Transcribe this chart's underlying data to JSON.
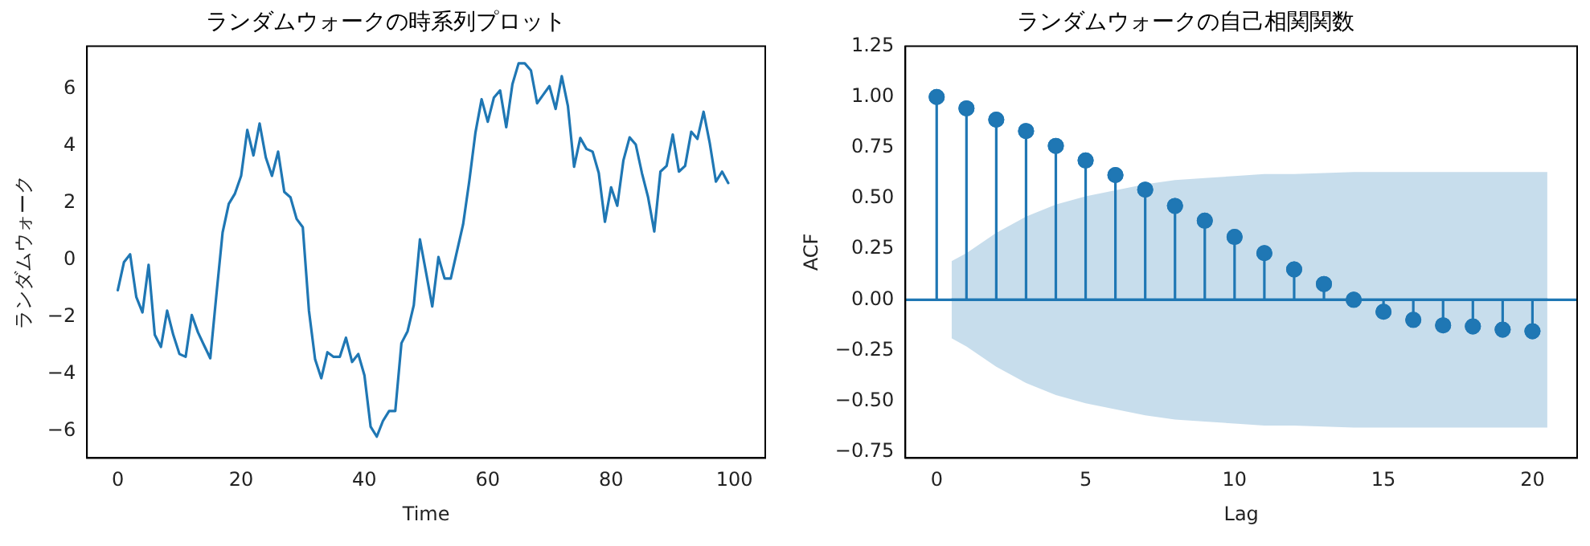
{
  "chart_data": [
    {
      "type": "line",
      "title": "ランダムウォークの時系列プロット",
      "xlabel": "Time",
      "ylabel": "ランダムウォーク",
      "x": [
        0,
        1,
        2,
        3,
        4,
        5,
        6,
        7,
        8,
        9,
        10,
        11,
        12,
        13,
        14,
        15,
        16,
        17,
        18,
        19,
        20,
        21,
        22,
        23,
        24,
        25,
        26,
        27,
        28,
        29,
        30,
        31,
        32,
        33,
        34,
        35,
        36,
        37,
        38,
        39,
        40,
        41,
        42,
        43,
        44,
        45,
        46,
        47,
        48,
        49,
        50,
        51,
        52,
        53,
        54,
        55,
        56,
        57,
        58,
        59,
        60,
        61,
        62,
        63,
        64,
        65,
        66,
        67,
        68,
        69,
        70,
        71,
        72,
        73,
        74,
        75,
        76,
        77,
        78,
        79,
        80,
        81,
        82,
        83,
        84,
        85,
        86,
        87,
        88,
        89,
        90,
        91,
        92,
        93,
        94,
        95,
        96,
        97,
        98,
        99
      ],
      "series": [
        {
          "color": "#1f77b4",
          "values": [
            -1.06,
            -0.08,
            0.2,
            -1.3,
            -1.84,
            -0.17,
            -2.63,
            -3.05,
            -1.78,
            -2.63,
            -3.3,
            -3.4,
            -1.93,
            -2.54,
            -3.0,
            -3.45,
            -1.2,
            0.97,
            1.97,
            2.33,
            2.95,
            4.56,
            3.67,
            4.79,
            3.6,
            2.95,
            3.8,
            2.39,
            2.2,
            1.44,
            1.15,
            -1.78,
            -3.49,
            -4.15,
            -3.24,
            -3.4,
            -3.4,
            -2.73,
            -3.58,
            -3.3,
            -4.05,
            -5.85,
            -6.2,
            -5.65,
            -5.3,
            -5.3,
            -2.92,
            -2.5,
            -1.59,
            0.72,
            -0.45,
            -1.63,
            0.1,
            -0.65,
            -0.65,
            0.3,
            1.25,
            2.76,
            4.47,
            5.64,
            4.85,
            5.7,
            5.95,
            4.66,
            6.17,
            6.9,
            6.9,
            6.65,
            5.5,
            5.8,
            6.1,
            5.3,
            6.45,
            5.4,
            3.27,
            4.28,
            3.9,
            3.8,
            3.05,
            1.34,
            2.55,
            1.9,
            3.5,
            4.3,
            4.05,
            3.05,
            2.2,
            1.0,
            3.1,
            3.3,
            4.4,
            3.1,
            3.3,
            4.5,
            4.25,
            5.2,
            4.1,
            2.75,
            3.1,
            2.7
          ]
        }
      ],
      "xlim": [
        -5,
        105
      ],
      "xticks": [
        0,
        20,
        40,
        60,
        80,
        100
      ],
      "ylim": [
        -6.95,
        7.5
      ],
      "yticks": [
        {
          "value": -6,
          "label": "−6"
        },
        {
          "value": -4,
          "label": "−4"
        },
        {
          "value": -2,
          "label": "−2"
        },
        0,
        2,
        4,
        6
      ],
      "marker": "none",
      "line_style": "solid",
      "grid": false,
      "legend": false
    },
    {
      "type": "lollipop",
      "title": "ランダムウォークの自己相関関数",
      "xlabel": "Lag",
      "ylabel": "ACF",
      "series": [
        {
          "type": "line",
          "color": "#1f77b4",
          "marker": "none",
          "x": [
            0.5,
            1,
            2,
            3,
            4,
            5,
            6,
            7,
            8,
            9,
            10,
            11,
            12,
            13,
            14,
            15,
            16,
            17,
            18,
            19,
            20,
            20.5
          ],
          "values": [
            0,
            0,
            0,
            0,
            0,
            0,
            0,
            0,
            0,
            0,
            0,
            0,
            0,
            0,
            0,
            0,
            0,
            0,
            0,
            0,
            0,
            0
          ],
          "lower": [
            -0.19,
            -0.23,
            -0.33,
            -0.41,
            -0.47,
            -0.51,
            -0.54,
            -0.57,
            -0.59,
            -0.6,
            -0.61,
            -0.62,
            -0.62,
            -0.625,
            -0.63,
            -0.63,
            -0.63,
            -0.63,
            -0.63,
            -0.63,
            -0.63,
            -0.63
          ],
          "upper": [
            0.19,
            0.23,
            0.33,
            0.41,
            0.47,
            0.51,
            0.54,
            0.57,
            0.59,
            0.6,
            0.61,
            0.62,
            0.62,
            0.625,
            0.63,
            0.63,
            0.63,
            0.63,
            0.63,
            0.63,
            0.63,
            0.63
          ]
        },
        {
          "type": "lollipop",
          "color": "#1f77b4",
          "x": [
            0,
            1,
            2,
            3,
            4,
            5,
            6,
            7,
            8,
            9,
            10,
            11,
            12,
            13,
            14,
            15,
            16,
            17,
            18,
            19,
            20
          ],
          "values": [
            1.0,
            0.944,
            0.888,
            0.832,
            0.759,
            0.687,
            0.615,
            0.543,
            0.463,
            0.39,
            0.31,
            0.23,
            0.15,
            0.078,
            0.0,
            -0.059,
            -0.099,
            -0.126,
            -0.131,
            -0.147,
            -0.155
          ]
        }
      ],
      "ref_lines": [
        {
          "axis": "y",
          "value": 0,
          "color": "#1f77b4"
        }
      ],
      "xlim": [
        -1.05,
        21.5
      ],
      "xticks": [
        0,
        5,
        10,
        15,
        20
      ],
      "ylim": [
        -0.78,
        1.25
      ],
      "yticks": [
        {
          "value": -0.75,
          "label": "−0.75"
        },
        {
          "value": -0.5,
          "label": "−0.50"
        },
        {
          "value": -0.25,
          "label": "−0.25"
        },
        {
          "value": 0,
          "label": "0.00"
        },
        {
          "value": 0.25,
          "label": "0.25"
        },
        {
          "value": 0.5,
          "label": "0.50"
        },
        {
          "value": 0.75,
          "label": "0.75"
        },
        {
          "value": 1,
          "label": "1.00"
        },
        {
          "value": 1.25,
          "label": "1.25"
        }
      ],
      "marker": "circle",
      "grid": false,
      "legend": false
    }
  ]
}
